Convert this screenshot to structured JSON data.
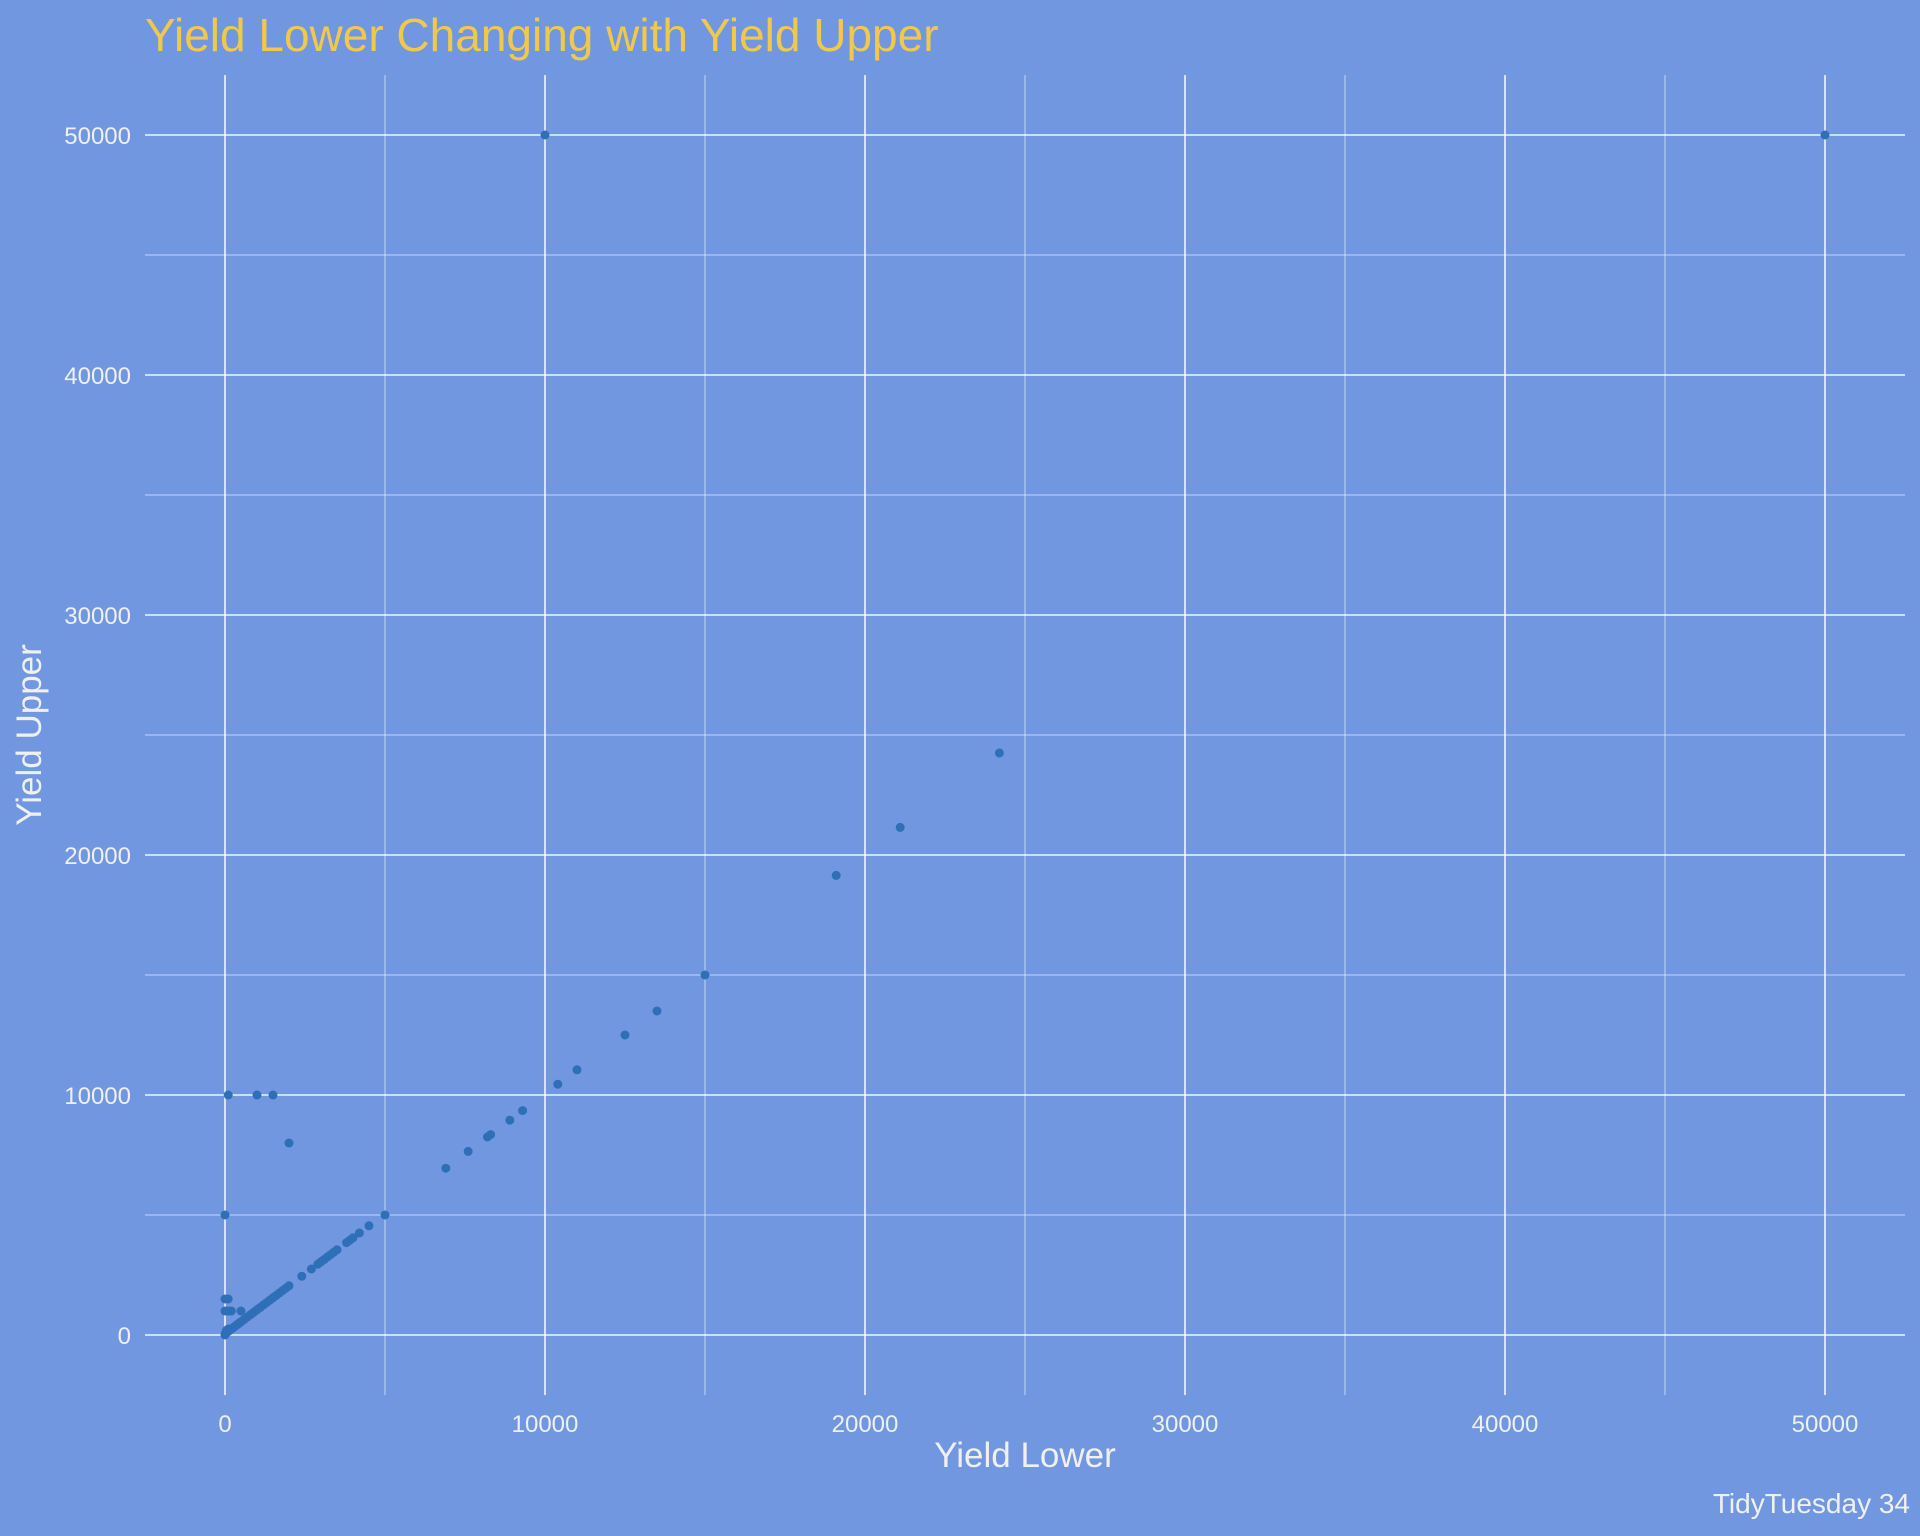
{
  "chart_data": {
    "type": "scatter",
    "title": "Yield Lower Changing with Yield Upper",
    "xlabel": "Yield Lower",
    "ylabel": "Yield Upper",
    "caption": "TidyTuesday 34",
    "xlim": [
      -2500,
      52500
    ],
    "ylim": [
      -2500,
      52500
    ],
    "x_ticks": [
      0,
      10000,
      20000,
      30000,
      40000,
      50000
    ],
    "y_ticks": [
      0,
      10000,
      20000,
      30000,
      40000,
      50000
    ],
    "grid": true,
    "point_color": "#2f6fb8",
    "background_color": "#7097e0",
    "title_color": "#f2c84b",
    "text_color": "#f0f0f0",
    "grid_color": "#ffffff",
    "points": [
      {
        "x": 0,
        "y": 0
      },
      {
        "x": 10,
        "y": 50
      },
      {
        "x": 20,
        "y": 100
      },
      {
        "x": 50,
        "y": 100
      },
      {
        "x": 50,
        "y": 200
      },
      {
        "x": 100,
        "y": 150
      },
      {
        "x": 100,
        "y": 250
      },
      {
        "x": 150,
        "y": 200
      },
      {
        "x": 200,
        "y": 250
      },
      {
        "x": 250,
        "y": 300
      },
      {
        "x": 300,
        "y": 350
      },
      {
        "x": 350,
        "y": 400
      },
      {
        "x": 400,
        "y": 450
      },
      {
        "x": 450,
        "y": 500
      },
      {
        "x": 500,
        "y": 550
      },
      {
        "x": 600,
        "y": 650
      },
      {
        "x": 700,
        "y": 750
      },
      {
        "x": 800,
        "y": 850
      },
      {
        "x": 900,
        "y": 950
      },
      {
        "x": 1000,
        "y": 1050
      },
      {
        "x": 1100,
        "y": 1150
      },
      {
        "x": 1200,
        "y": 1250
      },
      {
        "x": 1300,
        "y": 1350
      },
      {
        "x": 1400,
        "y": 1450
      },
      {
        "x": 1500,
        "y": 1550
      },
      {
        "x": 1600,
        "y": 1650
      },
      {
        "x": 1700,
        "y": 1750
      },
      {
        "x": 1800,
        "y": 1850
      },
      {
        "x": 1900,
        "y": 1950
      },
      {
        "x": 2000,
        "y": 2050
      },
      {
        "x": 2400,
        "y": 2450
      },
      {
        "x": 2700,
        "y": 2750
      },
      {
        "x": 2900,
        "y": 2950
      },
      {
        "x": 3000,
        "y": 3050
      },
      {
        "x": 3100,
        "y": 3150
      },
      {
        "x": 3200,
        "y": 3250
      },
      {
        "x": 3300,
        "y": 3350
      },
      {
        "x": 3400,
        "y": 3450
      },
      {
        "x": 3500,
        "y": 3550
      },
      {
        "x": 3800,
        "y": 3850
      },
      {
        "x": 3900,
        "y": 3950
      },
      {
        "x": 4000,
        "y": 4050
      },
      {
        "x": 4200,
        "y": 4250
      },
      {
        "x": 4500,
        "y": 4550
      },
      {
        "x": 5000,
        "y": 5000
      },
      {
        "x": 6900,
        "y": 6950
      },
      {
        "x": 7600,
        "y": 7650
      },
      {
        "x": 8200,
        "y": 8250
      },
      {
        "x": 8300,
        "y": 8350
      },
      {
        "x": 8900,
        "y": 8950
      },
      {
        "x": 9300,
        "y": 9350
      },
      {
        "x": 10400,
        "y": 10450
      },
      {
        "x": 11000,
        "y": 11050
      },
      {
        "x": 12500,
        "y": 12500
      },
      {
        "x": 13500,
        "y": 13500
      },
      {
        "x": 15000,
        "y": 15000
      },
      {
        "x": 19100,
        "y": 19150
      },
      {
        "x": 21100,
        "y": 21150
      },
      {
        "x": 24200,
        "y": 24250
      },
      {
        "x": 0,
        "y": 1000
      },
      {
        "x": 0,
        "y": 1500
      },
      {
        "x": 100,
        "y": 1500
      },
      {
        "x": 100,
        "y": 1000
      },
      {
        "x": 200,
        "y": 1000
      },
      {
        "x": 500,
        "y": 1000
      },
      {
        "x": 0,
        "y": 5000
      },
      {
        "x": 100,
        "y": 10000
      },
      {
        "x": 1000,
        "y": 10000
      },
      {
        "x": 1500,
        "y": 10000
      },
      {
        "x": 2000,
        "y": 8000
      },
      {
        "x": 10000,
        "y": 50000
      },
      {
        "x": 50000,
        "y": 50000
      }
    ]
  }
}
